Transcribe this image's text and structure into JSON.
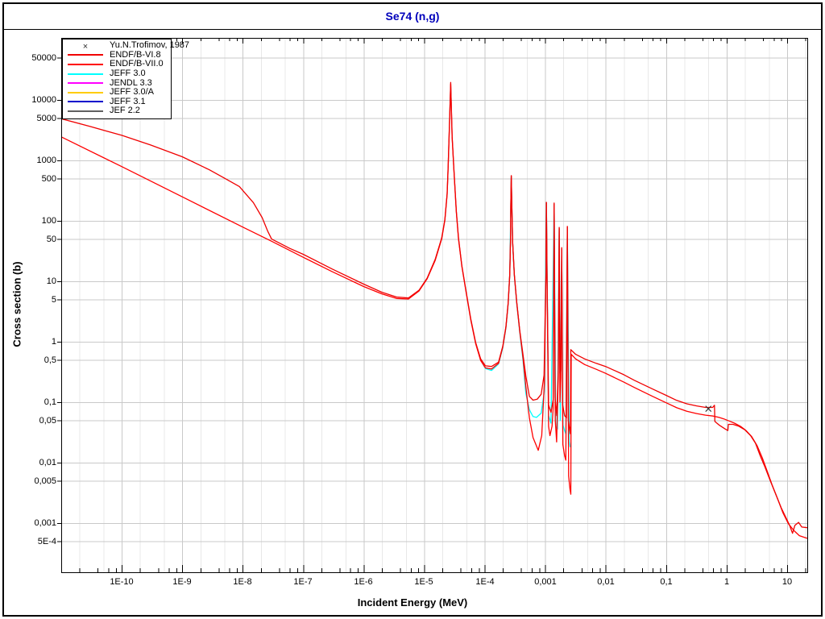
{
  "title": "Se74 (n,g)",
  "legend": {
    "items": [
      {
        "label": "Yu.N.Trofimov, 1987",
        "color": "#303030",
        "swatch": "marker-x"
      },
      {
        "label": "ENDF/B-VI.8",
        "color": "#f00000",
        "swatch": "line"
      },
      {
        "label": "ENDF/B-VII.0",
        "color": "#ff0000",
        "swatch": "line"
      },
      {
        "label": "JEFF 3.0",
        "color": "#00ffff",
        "swatch": "line"
      },
      {
        "label": "JENDL 3.3",
        "color": "#ff00ff",
        "swatch": "line"
      },
      {
        "label": "JEFF 3.0/A",
        "color": "#ffcc00",
        "swatch": "line"
      },
      {
        "label": "JEFF 3.1",
        "color": "#0000cc",
        "swatch": "line"
      },
      {
        "label": "JEF 2.2",
        "color": "#606060",
        "swatch": "line"
      }
    ]
  },
  "colors": {
    "title": "#0000bb",
    "frame": "#000000",
    "grid_major": "#c9c9c9",
    "grid_minor": "#e8e8e8",
    "background": "#ffffff"
  },
  "chart_data": {
    "type": "line",
    "x_scale": "log",
    "y_scale": "log",
    "title": "Se74 (n,g)",
    "xlabel": "Incident Energy (MeV)",
    "ylabel": "Cross section (b)",
    "x_log_range": [
      -11.0,
      1.334
    ],
    "y_log_range": [
      -3.813,
      5.027
    ],
    "x_major_ticks": [
      {
        "v": 1e-10,
        "label": "1E-10"
      },
      {
        "v": 1e-09,
        "label": "1E-9"
      },
      {
        "v": 1e-08,
        "label": "1E-8"
      },
      {
        "v": 1e-07,
        "label": "1E-7"
      },
      {
        "v": 1e-06,
        "label": "1E-6"
      },
      {
        "v": 1e-05,
        "label": "1E-5"
      },
      {
        "v": 0.0001,
        "label": "1E-4"
      },
      {
        "v": 0.001,
        "label": "0,001"
      },
      {
        "v": 0.01,
        "label": "0,01"
      },
      {
        "v": 0.1,
        "label": "0,1"
      },
      {
        "v": 1,
        "label": "1"
      },
      {
        "v": 10,
        "label": "10"
      }
    ],
    "y_ticks": [
      {
        "v": 50000,
        "label": "50000"
      },
      {
        "v": 10000,
        "label": "10000"
      },
      {
        "v": 5000,
        "label": "5000"
      },
      {
        "v": 1000,
        "label": "1000"
      },
      {
        "v": 500,
        "label": "500"
      },
      {
        "v": 100,
        "label": "100"
      },
      {
        "v": 50,
        "label": "50"
      },
      {
        "v": 10,
        "label": "10"
      },
      {
        "v": 5,
        "label": "5"
      },
      {
        "v": 1,
        "label": "1"
      },
      {
        "v": 0.5,
        "label": "0,5"
      },
      {
        "v": 0.1,
        "label": "0,1"
      },
      {
        "v": 0.05,
        "label": "0,05"
      },
      {
        "v": 0.01,
        "label": "0,01"
      },
      {
        "v": 0.005,
        "label": "0,005"
      },
      {
        "v": 0.001,
        "label": "0,001"
      },
      {
        "v": 0.0005,
        "label": "5E-4"
      }
    ],
    "series": [
      {
        "name": "JEFF 3.0",
        "color": "#00ffff",
        "points": [
          [
            8.6e-05,
            0.5
          ],
          [
            0.000103,
            0.36
          ],
          [
            0.00013,
            0.335
          ],
          [
            0.00017,
            0.43
          ],
          [
            0.0002,
            0.8
          ],
          [
            0.000225,
            1.7
          ],
          [
            0.000245,
            4.3
          ],
          [
            0.00026,
            12.5
          ],
          [
            0.000271,
            170
          ],
          [
            0.000276,
            550
          ],
          [
            0.000282,
            170
          ],
          [
            0.00029,
            43
          ],
          [
            0.00031,
            12.4
          ],
          [
            0.00034,
            4.3
          ],
          [
            0.00038,
            1.45
          ],
          [
            0.00043,
            0.5
          ],
          [
            0.00048,
            0.14
          ],
          [
            0.00055,
            0.075
          ],
          [
            0.00063,
            0.058
          ],
          [
            0.00072,
            0.056
          ],
          [
            0.00086,
            0.066
          ],
          [
            0.00097,
            0.15
          ],
          [
            0.00105,
            195
          ],
          [
            0.00114,
            0.06
          ],
          [
            0.00125,
            0.045
          ],
          [
            0.00141,
            185
          ],
          [
            0.0015,
            0.04
          ],
          [
            0.0016,
            0.036
          ],
          [
            0.00171,
            73
          ],
          [
            0.00178,
            0.05
          ],
          [
            0.00188,
            33
          ],
          [
            0.00197,
            0.042
          ],
          [
            0.0021,
            0.034
          ],
          [
            0.0022,
            0.03
          ],
          [
            0.00233,
            77
          ],
          [
            0.0025,
            0.022
          ],
          [
            0.0026,
            0.018
          ]
        ]
      },
      {
        "name": "ENDF/B-VII.0",
        "color": "#ff0000",
        "points": [
          [
            1e-11,
            2450
          ],
          [
            1e-10,
            790
          ],
          [
            1e-09,
            250
          ],
          [
            1e-08,
            79
          ],
          [
            3e-08,
            46
          ],
          [
            1e-07,
            25
          ],
          [
            3e-07,
            14.5
          ],
          [
            1e-06,
            8.2
          ],
          [
            2e-06,
            6.2
          ],
          [
            3.5e-06,
            5.2
          ],
          [
            5.5e-06,
            5.1
          ],
          [
            8.2e-06,
            6.9
          ],
          [
            1.12e-05,
            11.0
          ],
          [
            1.52e-05,
            22
          ],
          [
            1.95e-05,
            50
          ],
          [
            2.2e-05,
            103
          ],
          [
            2.4e-05,
            275
          ],
          [
            2.5e-05,
            800
          ],
          [
            2.63e-05,
            4300
          ],
          [
            2.75e-05,
            18500
          ],
          [
            2.9e-05,
            2400
          ],
          [
            3.1e-05,
            690
          ],
          [
            3.4e-05,
            140
          ],
          [
            3.7e-05,
            50
          ],
          [
            4.2e-05,
            17.5
          ],
          [
            4.9e-05,
            6.9
          ],
          [
            5.9e-05,
            2.3
          ],
          [
            7.1e-05,
            0.93
          ],
          [
            8.6e-05,
            0.49
          ],
          [
            0.000103,
            0.37
          ],
          [
            0.00013,
            0.355
          ],
          [
            0.00017,
            0.44
          ],
          [
            0.0002,
            0.82
          ],
          [
            0.000225,
            1.75
          ],
          [
            0.000245,
            4.4
          ],
          [
            0.00026,
            12.8
          ],
          [
            0.000267,
            44
          ],
          [
            0.000271,
            175
          ],
          [
            0.000276,
            555
          ],
          [
            0.000282,
            175
          ],
          [
            0.00029,
            44
          ],
          [
            0.00031,
            12.7
          ],
          [
            0.00034,
            4.4
          ],
          [
            0.00038,
            1.5
          ],
          [
            0.00043,
            0.55
          ],
          [
            0.00048,
            0.18
          ],
          [
            0.00055,
            0.055
          ],
          [
            0.00063,
            0.026
          ],
          [
            0.00077,
            0.016
          ],
          [
            0.00088,
            0.028
          ],
          [
            0.00097,
            0.2
          ],
          [
            0.00103,
            12
          ],
          [
            0.00105,
            200
          ],
          [
            0.00108,
            8
          ],
          [
            0.00114,
            0.04
          ],
          [
            0.0012,
            0.028
          ],
          [
            0.0013,
            0.04
          ],
          [
            0.00136,
            0.08
          ],
          [
            0.00141,
            190
          ],
          [
            0.00147,
            0.05
          ],
          [
            0.00155,
            0.022
          ],
          [
            0.00165,
            0.25
          ],
          [
            0.00171,
            75
          ],
          [
            0.00176,
            0.1
          ],
          [
            0.00182,
            0.25
          ],
          [
            0.00188,
            34
          ],
          [
            0.00196,
            0.02
          ],
          [
            0.0021,
            0.013
          ],
          [
            0.0022,
            0.011
          ],
          [
            0.00233,
            79
          ],
          [
            0.00245,
            0.006
          ],
          [
            0.00258,
            0.0036
          ],
          [
            0.00266,
            0.003
          ],
          [
            0.0027,
            0.62
          ],
          [
            0.0032,
            0.52
          ],
          [
            0.0045,
            0.42
          ],
          [
            0.007,
            0.35
          ],
          [
            0.01,
            0.3
          ],
          [
            0.02,
            0.215
          ],
          [
            0.03,
            0.175
          ],
          [
            0.06,
            0.125
          ],
          [
            0.1,
            0.098
          ],
          [
            0.15,
            0.081
          ],
          [
            0.22,
            0.071
          ],
          [
            0.32,
            0.065
          ],
          [
            0.45,
            0.061
          ],
          [
            0.6,
            0.059
          ],
          [
            0.75,
            0.056
          ],
          [
            0.9,
            0.053
          ],
          [
            1.1,
            0.049
          ],
          [
            1.35,
            0.045
          ],
          [
            1.7,
            0.04
          ],
          [
            2.1,
            0.034
          ],
          [
            2.6,
            0.027
          ],
          [
            3.2,
            0.019
          ],
          [
            3.9,
            0.012
          ],
          [
            4.7,
            0.0072
          ],
          [
            5.7,
            0.0042
          ],
          [
            7.0,
            0.0025
          ],
          [
            8.5,
            0.0015
          ],
          [
            10.5,
            0.00098
          ],
          [
            13.0,
            0.00075
          ],
          [
            16.0,
            0.00062
          ],
          [
            21.5,
            0.00056
          ]
        ]
      },
      {
        "name": "ENDF/B-VI.8",
        "color": "#f00000",
        "points": [
          [
            1e-11,
            4900
          ],
          [
            3e-11,
            3650
          ],
          [
            1e-10,
            2600
          ],
          [
            3e-10,
            1800
          ],
          [
            1e-09,
            1150
          ],
          [
            2.8e-09,
            700
          ],
          [
            4.8e-09,
            520
          ],
          [
            8.8e-09,
            370
          ],
          [
            1.5e-08,
            200
          ],
          [
            2.1e-08,
            113
          ],
          [
            2.6e-08,
            67
          ],
          [
            3e-08,
            50
          ],
          [
            6e-08,
            35
          ],
          [
            1e-07,
            28
          ],
          [
            3e-07,
            16
          ],
          [
            1e-06,
            9.0
          ],
          [
            2e-06,
            6.6
          ],
          [
            3.5e-06,
            5.5
          ],
          [
            5.5e-06,
            5.3
          ],
          [
            8.2e-06,
            7.1
          ],
          [
            1.12e-05,
            11.3
          ],
          [
            1.52e-05,
            23
          ],
          [
            1.95e-05,
            52
          ],
          [
            2.2e-05,
            106
          ],
          [
            2.4e-05,
            285
          ],
          [
            2.5e-05,
            830
          ],
          [
            2.63e-05,
            4500
          ],
          [
            2.75e-05,
            19500
          ],
          [
            2.9e-05,
            2500
          ],
          [
            3.1e-05,
            710
          ],
          [
            3.4e-05,
            145
          ],
          [
            3.7e-05,
            52
          ],
          [
            4.2e-05,
            18
          ],
          [
            4.9e-05,
            7.1
          ],
          [
            5.9e-05,
            2.4
          ],
          [
            7.1e-05,
            0.97
          ],
          [
            8.6e-05,
            0.52
          ],
          [
            0.000103,
            0.4
          ],
          [
            0.00013,
            0.39
          ],
          [
            0.00017,
            0.46
          ],
          [
            0.0002,
            0.85
          ],
          [
            0.000225,
            1.8
          ],
          [
            0.000245,
            4.5
          ],
          [
            0.00026,
            13
          ],
          [
            0.000267,
            45
          ],
          [
            0.000271,
            180
          ],
          [
            0.000276,
            560
          ],
          [
            0.000282,
            180
          ],
          [
            0.00029,
            45
          ],
          [
            0.00031,
            13
          ],
          [
            0.00034,
            4.5
          ],
          [
            0.00038,
            1.55
          ],
          [
            0.00043,
            0.62
          ],
          [
            0.00048,
            0.27
          ],
          [
            0.00055,
            0.125
          ],
          [
            0.00063,
            0.108
          ],
          [
            0.00074,
            0.112
          ],
          [
            0.00086,
            0.135
          ],
          [
            0.00096,
            0.28
          ],
          [
            0.00103,
            14
          ],
          [
            0.00105,
            203
          ],
          [
            0.00108,
            10
          ],
          [
            0.00114,
            0.09
          ],
          [
            0.00125,
            0.068
          ],
          [
            0.00136,
            0.11
          ],
          [
            0.00141,
            197
          ],
          [
            0.00146,
            0.12
          ],
          [
            0.00156,
            0.06
          ],
          [
            0.00165,
            0.35
          ],
          [
            0.00171,
            78
          ],
          [
            0.00176,
            0.3
          ],
          [
            0.00182,
            0.33
          ],
          [
            0.00188,
            36
          ],
          [
            0.00195,
            0.09
          ],
          [
            0.0021,
            0.06
          ],
          [
            0.00225,
            0.055
          ],
          [
            0.00233,
            81
          ],
          [
            0.00242,
            0.05
          ],
          [
            0.00255,
            0.035
          ],
          [
            0.00262,
            0.03
          ],
          [
            0.00266,
            0.74
          ],
          [
            0.0032,
            0.62
          ],
          [
            0.0045,
            0.52
          ],
          [
            0.007,
            0.44
          ],
          [
            0.01,
            0.39
          ],
          [
            0.02,
            0.285
          ],
          [
            0.03,
            0.23
          ],
          [
            0.06,
            0.165
          ],
          [
            0.1,
            0.13
          ],
          [
            0.15,
            0.107
          ],
          [
            0.22,
            0.094
          ],
          [
            0.32,
            0.087
          ],
          [
            0.45,
            0.082
          ],
          [
            0.59,
            0.082
          ],
          [
            0.63,
            0.089
          ],
          [
            0.64,
            0.048
          ],
          [
            0.75,
            0.042
          ],
          [
            0.95,
            0.036
          ],
          [
            1.05,
            0.034
          ],
          [
            1.07,
            0.043
          ],
          [
            1.28,
            0.043
          ],
          [
            1.6,
            0.04
          ],
          [
            2.0,
            0.035
          ],
          [
            2.5,
            0.028
          ],
          [
            3.0,
            0.021
          ],
          [
            3.6,
            0.013
          ],
          [
            4.3,
            0.0085
          ],
          [
            5.2,
            0.0052
          ],
          [
            6.5,
            0.003
          ],
          [
            8.0,
            0.0018
          ],
          [
            9.5,
            0.00125
          ],
          [
            11.0,
            0.00092
          ],
          [
            12.3,
            0.00068
          ],
          [
            13.5,
            0.00092
          ],
          [
            15.5,
            0.00103
          ],
          [
            17.5,
            0.00086
          ],
          [
            21.5,
            0.00084
          ]
        ]
      }
    ],
    "scatter": [
      {
        "name": "Yu.N.Trofimov, 1987",
        "color": "#303030",
        "marker": "x",
        "points": [
          [
            0.5,
            0.078
          ]
        ]
      }
    ]
  }
}
